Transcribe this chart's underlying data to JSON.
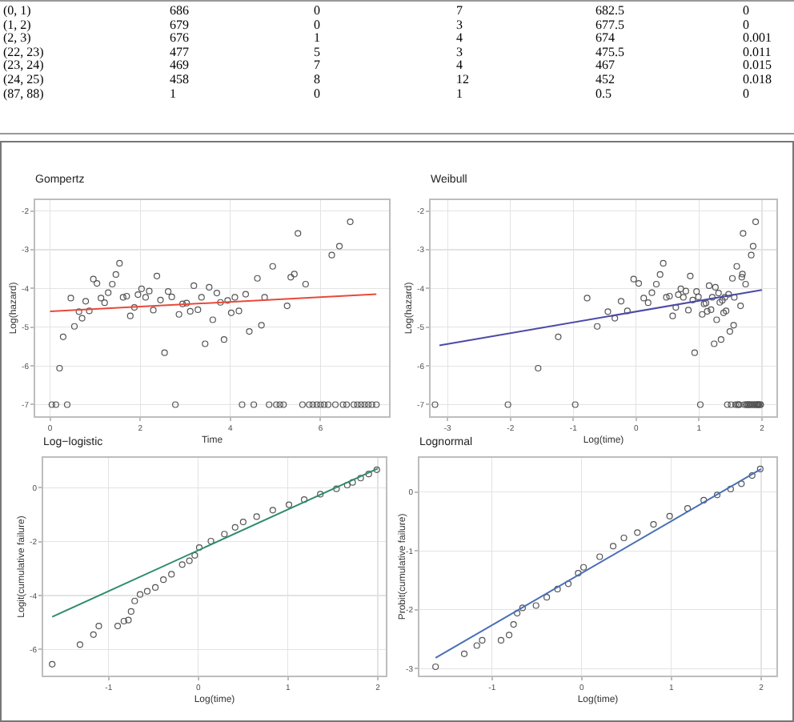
{
  "chart_data": [
    {
      "type": "other",
      "data_labels": true,
      "categories": [
        "(0, 1)",
        "(1, 2)",
        "(2, 3)",
        "(22, 23)",
        "(23, 24)",
        "(24, 25)",
        "(87, 88)"
      ],
      "series": [
        {
          "values": [
            686,
            679,
            676,
            477,
            469,
            458,
            1
          ]
        },
        {
          "values": [
            0,
            0,
            1,
            5,
            7,
            8,
            0
          ]
        },
        {
          "values": [
            7,
            3,
            4,
            3,
            4,
            12,
            1
          ]
        },
        {
          "values": [
            682.5,
            677.5,
            674,
            475.5,
            467,
            452,
            0.5
          ]
        },
        {
          "values": [
            0,
            0,
            0.001,
            0.011,
            0.015,
            0.018,
            0
          ]
        }
      ]
    },
    {
      "type": "scatter",
      "title": "Gompertz",
      "xlabel": "Time",
      "ylabel": "Log(hazard)",
      "xlim": [
        -0.33,
        7.52
      ],
      "ylim": [
        -7.3,
        -1.72
      ],
      "xticks": [
        0,
        2,
        4,
        6
      ],
      "yticks": [
        -7,
        -6,
        -5,
        -4,
        -3,
        -2
      ],
      "grid": true,
      "marker": "circle",
      "series": [
        {
          "color": "#555555",
          "x": [
            0.04,
            0.13,
            0.21,
            0.29,
            0.38,
            0.46,
            0.54,
            0.64,
            0.71,
            0.79,
            0.87,
            0.96,
            1.04,
            1.13,
            1.21,
            1.29,
            1.38,
            1.46,
            1.54,
            1.62,
            1.7,
            1.78,
            1.87,
            1.95,
            2.03,
            2.12,
            2.2,
            2.29,
            2.37,
            2.45,
            2.54,
            2.62,
            2.7,
            2.78,
            2.86,
            2.94,
            3.03,
            3.11,
            3.19,
            3.28,
            3.36,
            3.44,
            3.53,
            3.61,
            3.7,
            3.78,
            3.86,
            3.94,
            4.02,
            4.1,
            4.19,
            4.26,
            4.34,
            4.42,
            4.52,
            4.6,
            4.69,
            4.76,
            4.86,
            4.94,
            5.02,
            5.1,
            5.18,
            5.26,
            5.34,
            5.42,
            5.5,
            5.6,
            5.67,
            5.75,
            5.83,
            5.92,
            6.0,
            6.08,
            6.17,
            6.25,
            6.33,
            6.42,
            6.5,
            6.58,
            6.66,
            6.74,
            6.82,
            6.9,
            6.98,
            7.06,
            7.14,
            7.24
          ],
          "values": [
            -7,
            -7,
            -6.06,
            -5.25,
            -7,
            -4.25,
            -4.98,
            -4.6,
            -4.77,
            -4.33,
            -4.58,
            -3.76,
            -3.87,
            -4.25,
            -4.37,
            -4.11,
            -3.89,
            -3.64,
            -3.35,
            -4.23,
            -4.2,
            -4.71,
            -4.49,
            -4.16,
            -4.01,
            -4.23,
            -4.07,
            -4.56,
            -3.68,
            -4.3,
            -5.66,
            -4.08,
            -4.22,
            -7,
            -4.67,
            -4.4,
            -4.38,
            -4.59,
            -3.93,
            -4.55,
            -4.23,
            -5.43,
            -3.97,
            -4.81,
            -4.12,
            -4.36,
            -5.32,
            -4.31,
            -4.63,
            -4.23,
            -4.58,
            -7,
            -4.15,
            -5.11,
            -7,
            -3.74,
            -4.95,
            -4.23,
            -7,
            -3.43,
            -7,
            -7,
            -7,
            -4.45,
            -3.71,
            -3.63,
            -2.58,
            -7,
            -3.89,
            -7,
            -7,
            -7,
            -7,
            -7,
            -7,
            -3.14,
            -7,
            -2.91,
            -7,
            -7,
            -2.28,
            -7,
            -7,
            -7,
            -7,
            -7,
            -7,
            -7
          ]
        },
        {
          "type": "line",
          "marker": "none",
          "color": "#e8493a",
          "x": [
            0,
            7.24
          ],
          "values": [
            -4.59,
            -4.15
          ]
        }
      ]
    },
    {
      "type": "scatter",
      "title": "Weibull",
      "xlabel": "Log(time)",
      "ylabel": "Log(hazard)",
      "xlim": [
        -3.27,
        2.23
      ],
      "ylim": [
        -7.3,
        -1.72
      ],
      "xticks": [
        -3,
        -2,
        -1,
        0,
        1,
        2
      ],
      "yticks": [
        -7,
        -6,
        -5,
        -4,
        -3,
        -2
      ],
      "grid": true,
      "marker": "circle",
      "series": [
        {
          "color": "#555555",
          "x": [
            -3.2,
            -2.04,
            -1.56,
            -1.24,
            -0.97,
            -0.78,
            -0.62,
            -0.45,
            -0.34,
            -0.24,
            -0.14,
            -0.04,
            0.04,
            0.12,
            0.19,
            0.25,
            0.32,
            0.38,
            0.43,
            0.48,
            0.53,
            0.58,
            0.63,
            0.67,
            0.71,
            0.75,
            0.79,
            0.83,
            0.86,
            0.9,
            0.93,
            0.96,
            0.99,
            1.02,
            1.05,
            1.08,
            1.11,
            1.13,
            1.16,
            1.19,
            1.21,
            1.24,
            1.26,
            1.28,
            1.31,
            1.33,
            1.35,
            1.37,
            1.39,
            1.41,
            1.43,
            1.45,
            1.47,
            1.49,
            1.51,
            1.53,
            1.55,
            1.56,
            1.58,
            1.6,
            1.61,
            1.63,
            1.64,
            1.66,
            1.68,
            1.69,
            1.7,
            1.72,
            1.74,
            1.75,
            1.76,
            1.78,
            1.79,
            1.81,
            1.82,
            1.83,
            1.85,
            1.86,
            1.87,
            1.88,
            1.9,
            1.91,
            1.92,
            1.93,
            1.94,
            1.95,
            1.97,
            1.98
          ],
          "values": [
            -7,
            -7,
            -6.06,
            -5.25,
            -7,
            -4.25,
            -4.98,
            -4.6,
            -4.77,
            -4.33,
            -4.58,
            -3.76,
            -3.87,
            -4.25,
            -4.37,
            -4.11,
            -3.89,
            -3.64,
            -3.35,
            -4.23,
            -4.2,
            -4.71,
            -4.49,
            -4.16,
            -4.01,
            -4.23,
            -4.07,
            -4.56,
            -3.68,
            -4.3,
            -5.66,
            -4.08,
            -4.22,
            -7,
            -4.67,
            -4.4,
            -4.38,
            -4.59,
            -3.93,
            -4.55,
            -4.23,
            -5.43,
            -3.97,
            -4.81,
            -4.12,
            -4.36,
            -5.32,
            -4.31,
            -4.63,
            -4.23,
            -4.58,
            -7,
            -4.15,
            -5.11,
            -7,
            -3.74,
            -4.95,
            -4.23,
            -7,
            -3.43,
            -7,
            -7,
            -7,
            -4.45,
            -3.71,
            -3.63,
            -2.58,
            -7,
            -3.89,
            -7,
            -7,
            -7,
            -7,
            -7,
            -7,
            -3.14,
            -7,
            -2.91,
            -7,
            -7,
            -2.28,
            -7,
            -7,
            -7,
            -7,
            -7,
            -7,
            -7
          ]
        },
        {
          "type": "line",
          "marker": "none",
          "color": "#4b4ba8",
          "x": [
            -3.13,
            2.0
          ],
          "values": [
            -5.47,
            -4.04
          ]
        }
      ]
    },
    {
      "type": "scatter",
      "title": "Log−logistic",
      "xlabel": "Log(time)",
      "ylabel": "Logit(cumulative failure)",
      "xlim": [
        -1.73,
        2.09
      ],
      "ylim": [
        -6.97,
        1.11
      ],
      "xticks": [
        -1,
        0,
        1,
        2
      ],
      "yticks": [
        -6,
        -4,
        -2,
        0
      ],
      "grid": true,
      "marker": "circle",
      "series": [
        {
          "color": "#555555",
          "x": [
            -1.63,
            -1.32,
            -1.17,
            -1.11,
            -0.9,
            -0.83,
            -0.78,
            -0.75,
            -0.71,
            -0.65,
            -0.57,
            -0.48,
            -0.39,
            -0.3,
            -0.18,
            -0.1,
            -0.04,
            0.01,
            0.14,
            0.29,
            0.41,
            0.5,
            0.65,
            0.83,
            1.01,
            1.18,
            1.36,
            1.54,
            1.66,
            1.72,
            1.81,
            1.9,
            1.99
          ],
          "values": [
            -6.55,
            -5.82,
            -5.45,
            -5.13,
            -5.13,
            -4.95,
            -4.91,
            -4.59,
            -4.2,
            -3.96,
            -3.84,
            -3.7,
            -3.41,
            -3.21,
            -2.85,
            -2.71,
            -2.51,
            -2.22,
            -1.98,
            -1.72,
            -1.47,
            -1.27,
            -1.07,
            -0.83,
            -0.63,
            -0.44,
            -0.24,
            -0.04,
            0.1,
            0.2,
            0.36,
            0.51,
            0.67
          ]
        },
        {
          "type": "line",
          "marker": "none",
          "color": "#2e8b6a",
          "x": [
            -1.63,
            2.0
          ],
          "values": [
            -4.79,
            0.71
          ]
        }
      ]
    },
    {
      "type": "scatter",
      "title": "Lognormal",
      "xlabel": "Log(time)",
      "ylabel": "Probit(cumulative failure)",
      "xlim": [
        -1.81,
        2.17
      ],
      "ylim": [
        -3.12,
        0.58
      ],
      "xticks": [
        -1,
        0,
        1,
        2
      ],
      "yticks": [
        -3,
        -2,
        -1,
        0
      ],
      "grid": true,
      "marker": "circle",
      "series": [
        {
          "color": "#555555",
          "x": [
            -1.63,
            -1.31,
            -1.17,
            -1.11,
            -0.9,
            -0.81,
            -0.76,
            -0.72,
            -0.66,
            -0.51,
            -0.39,
            -0.27,
            -0.15,
            -0.04,
            0.02,
            0.2,
            0.35,
            0.47,
            0.62,
            0.8,
            0.98,
            1.18,
            1.36,
            1.51,
            1.66,
            1.78,
            1.9,
            1.99
          ],
          "values": [
            -2.97,
            -2.75,
            -2.61,
            -2.52,
            -2.52,
            -2.43,
            -2.25,
            -2.06,
            -1.97,
            -1.93,
            -1.79,
            -1.65,
            -1.56,
            -1.38,
            -1.28,
            -1.1,
            -0.92,
            -0.78,
            -0.69,
            -0.55,
            -0.41,
            -0.28,
            -0.14,
            -0.05,
            0.05,
            0.14,
            0.28,
            0.39
          ]
        },
        {
          "type": "line",
          "marker": "none",
          "color": "#4a6fb5",
          "x": [
            -1.63,
            2.0
          ],
          "values": [
            -2.82,
            0.39
          ]
        }
      ]
    }
  ]
}
